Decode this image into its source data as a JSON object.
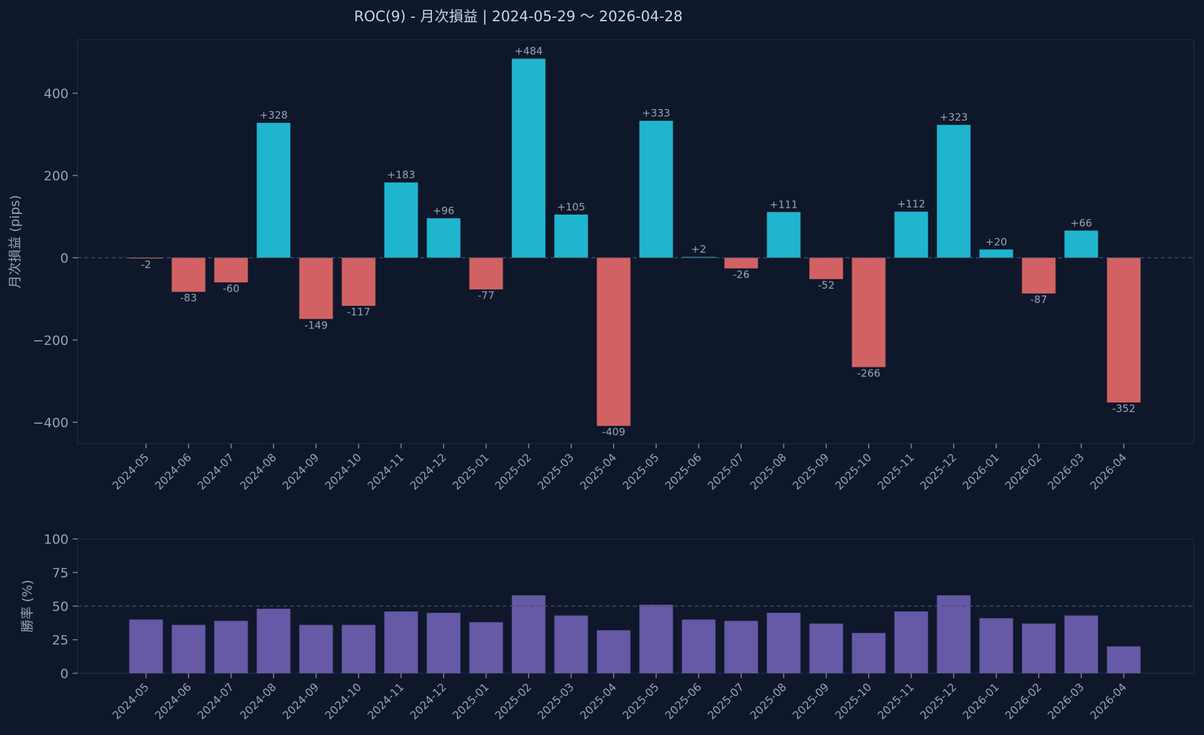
{
  "title": "ROC(9) - 月次損益 | 2024-05-29 〜 2026-04-28",
  "colors": {
    "background": "#0f172a",
    "frame": "#1e293b",
    "positive": "#1fb5cf",
    "negative": "#d26163",
    "winrate": "#6659a6",
    "text": "#94a3b8",
    "title": "#cbd5e1",
    "reference_line": "#475569"
  },
  "chart_data": [
    {
      "type": "bar",
      "name": "monthly-pnl",
      "categories": [
        "2024-05",
        "2024-06",
        "2024-07",
        "2024-08",
        "2024-09",
        "2024-10",
        "2024-11",
        "2024-12",
        "2025-01",
        "2025-02",
        "2025-03",
        "2025-04",
        "2025-05",
        "2025-06",
        "2025-07",
        "2025-08",
        "2025-09",
        "2025-10",
        "2025-11",
        "2025-12",
        "2026-01",
        "2026-02",
        "2026-03",
        "2026-04"
      ],
      "values": [
        -2,
        -83,
        -60,
        328,
        -149,
        -117,
        183,
        96,
        -77,
        484,
        105,
        -409,
        333,
        2,
        -26,
        111,
        -52,
        -266,
        112,
        323,
        20,
        -87,
        66,
        -352
      ],
      "value_labels": [
        "-2",
        "-83",
        "-60",
        "+328",
        "-149",
        "-117",
        "+183",
        "+96",
        "-77",
        "+484",
        "+105",
        "-409",
        "+333",
        "+2",
        "-26",
        "+111",
        "-52",
        "-266",
        "+112",
        "+323",
        "+20",
        "-87",
        "+66",
        "-352"
      ],
      "ylabel": "月次損益 (pips)",
      "ylim": [
        -452,
        530
      ],
      "yticks": [
        -400,
        -200,
        0,
        200,
        400
      ],
      "ytick_labels": [
        "−400",
        "−200",
        "0",
        "200",
        "400"
      ],
      "reference_line": 0
    },
    {
      "type": "bar",
      "name": "win-rate",
      "categories": [
        "2024-05",
        "2024-06",
        "2024-07",
        "2024-08",
        "2024-09",
        "2024-10",
        "2024-11",
        "2024-12",
        "2025-01",
        "2025-02",
        "2025-03",
        "2025-04",
        "2025-05",
        "2025-06",
        "2025-07",
        "2025-08",
        "2025-09",
        "2025-10",
        "2025-11",
        "2025-12",
        "2026-01",
        "2026-02",
        "2026-03",
        "2026-04"
      ],
      "values": [
        40,
        36,
        39,
        48,
        36,
        36,
        46,
        45,
        38,
        58,
        43,
        32,
        51,
        40,
        39,
        45,
        37,
        30,
        46,
        58,
        41,
        37,
        43,
        20
      ],
      "ylabel": "勝率 (%)",
      "ylim": [
        0,
        100
      ],
      "yticks": [
        0,
        25,
        50,
        75,
        100
      ],
      "ytick_labels": [
        "0",
        "25",
        "50",
        "75",
        "100"
      ],
      "reference_line": 50
    }
  ]
}
